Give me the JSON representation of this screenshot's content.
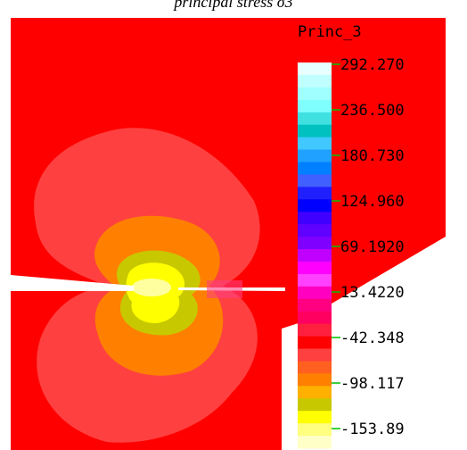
{
  "title": "principal stress σ3",
  "legend": {
    "title": "Princ_3",
    "ticks": [
      "292.270",
      "236.500",
      "180.730",
      "124.960",
      "69.1920",
      "13.4220",
      "-42.348",
      "-98.117",
      "-153.89"
    ]
  }
}
